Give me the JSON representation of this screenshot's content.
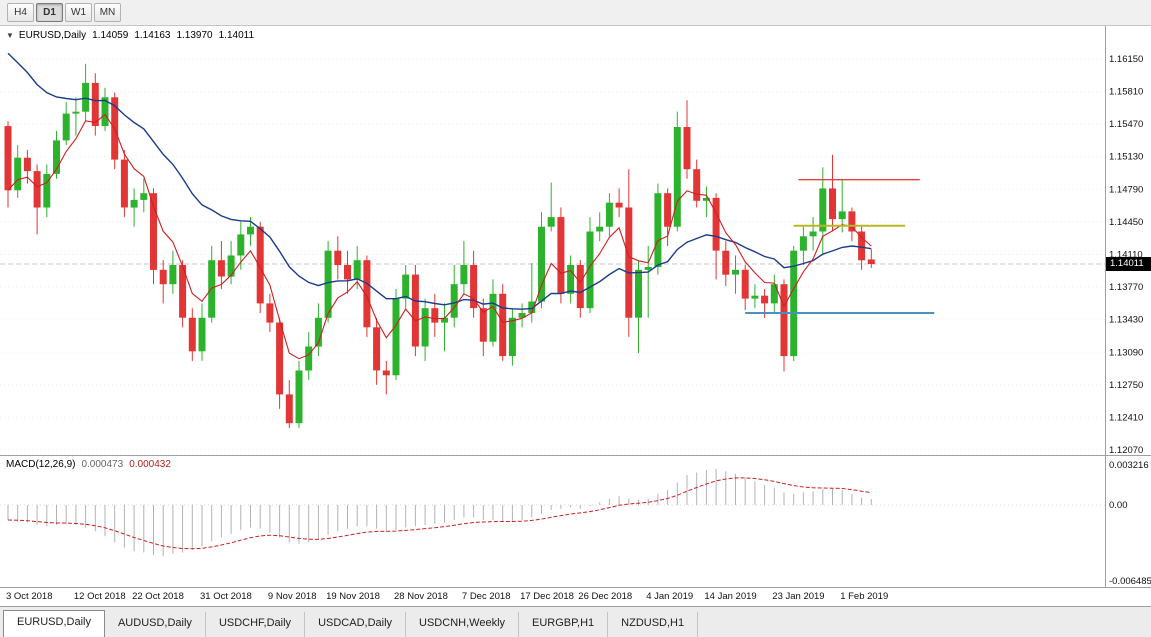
{
  "toolbar": {
    "timeframes": [
      {
        "label": "H4",
        "active": false
      },
      {
        "label": "D1",
        "active": true
      },
      {
        "label": "W1",
        "active": false
      },
      {
        "label": "MN",
        "active": false
      }
    ]
  },
  "chart": {
    "title": {
      "symbol_period": "EURUSD,Daily",
      "open": "1.14059",
      "high": "1.14163",
      "low": "1.13970",
      "close": "1.14011"
    },
    "current_price": "1.14011",
    "price_axis": [
      "1.16150",
      "1.15810",
      "1.15470",
      "1.15130",
      "1.14790",
      "1.14450",
      "1.14110",
      "1.13770",
      "1.13430",
      "1.13090",
      "1.12750",
      "1.12410",
      "1.12070"
    ]
  },
  "macd": {
    "label": "MACD(12,26,9)",
    "value": "0.000473",
    "signal_value": "0.000432",
    "axis": [
      "0.003216",
      "0.00",
      "-0.006485"
    ]
  },
  "date_axis": [
    {
      "label": "3 Oct 2018",
      "bar": 0
    },
    {
      "label": "12 Oct 2018",
      "bar": 7
    },
    {
      "label": "22 Oct 2018",
      "bar": 13
    },
    {
      "label": "31 Oct 2018",
      "bar": 20
    },
    {
      "label": "9 Nov 2018",
      "bar": 27
    },
    {
      "label": "19 Nov 2018",
      "bar": 33
    },
    {
      "label": "28 Nov 2018",
      "bar": 40
    },
    {
      "label": "7 Dec 2018",
      "bar": 47
    },
    {
      "label": "17 Dec 2018",
      "bar": 53
    },
    {
      "label": "26 Dec 2018",
      "bar": 59
    },
    {
      "label": "4 Jan 2019",
      "bar": 66
    },
    {
      "label": "14 Jan 2019",
      "bar": 72
    },
    {
      "label": "23 Jan 2019",
      "bar": 79
    },
    {
      "label": "1 Feb 2019",
      "bar": 86
    }
  ],
  "tabs": [
    {
      "label": "EURUSD,Daily",
      "active": true
    },
    {
      "label": "AUDUSD,Daily",
      "active": false
    },
    {
      "label": "USDCHF,Daily",
      "active": false
    },
    {
      "label": "USDCAD,Daily",
      "active": false
    },
    {
      "label": "USDCNH,Weekly",
      "active": false
    },
    {
      "label": "EURGBP,H1",
      "active": false
    },
    {
      "label": "NZDUSD,H1",
      "active": false
    }
  ],
  "chart_data": {
    "type": "candlestick",
    "symbol": "EURUSD",
    "timeframe": "Daily",
    "title": "EURUSD,Daily",
    "price_range": [
      1.12018,
      1.16494
    ],
    "colors": {
      "up": "#2db22d",
      "down": "#e23535",
      "hist": "#b2b2b2",
      "signal": "#cc2020",
      "ma_slow": "#1b3c8c",
      "ma_fast": "#cc2020"
    },
    "candles": [
      [
        1.1545,
        1.155,
        1.146,
        1.1478
      ],
      [
        1.1478,
        1.1525,
        1.147,
        1.1512
      ],
      [
        1.1512,
        1.152,
        1.1485,
        1.1498
      ],
      [
        1.1498,
        1.1505,
        1.1432,
        1.146
      ],
      [
        1.146,
        1.1505,
        1.145,
        1.1495
      ],
      [
        1.1495,
        1.154,
        1.149,
        1.153
      ],
      [
        1.153,
        1.157,
        1.1525,
        1.1558
      ],
      [
        1.1558,
        1.1575,
        1.1535,
        1.156
      ],
      [
        1.156,
        1.161,
        1.155,
        1.159
      ],
      [
        1.159,
        1.16,
        1.1535,
        1.1545
      ],
      [
        1.1545,
        1.1585,
        1.154,
        1.1575
      ],
      [
        1.1575,
        1.158,
        1.15,
        1.151
      ],
      [
        1.151,
        1.152,
        1.145,
        1.146
      ],
      [
        1.146,
        1.148,
        1.144,
        1.1468
      ],
      [
        1.1468,
        1.149,
        1.1455,
        1.1475
      ],
      [
        1.1475,
        1.148,
        1.138,
        1.1395
      ],
      [
        1.1395,
        1.1405,
        1.136,
        1.138
      ],
      [
        1.138,
        1.1415,
        1.137,
        1.14
      ],
      [
        1.14,
        1.1405,
        1.1335,
        1.1345
      ],
      [
        1.1345,
        1.1355,
        1.13,
        1.131
      ],
      [
        1.131,
        1.136,
        1.13,
        1.1345
      ],
      [
        1.1345,
        1.142,
        1.134,
        1.1405
      ],
      [
        1.1405,
        1.1425,
        1.1375,
        1.1388
      ],
      [
        1.1388,
        1.1425,
        1.138,
        1.141
      ],
      [
        1.141,
        1.1445,
        1.1395,
        1.1432
      ],
      [
        1.1432,
        1.145,
        1.142,
        1.144
      ],
      [
        1.144,
        1.1445,
        1.135,
        1.136
      ],
      [
        1.136,
        1.137,
        1.133,
        1.134
      ],
      [
        1.134,
        1.1345,
        1.125,
        1.1265
      ],
      [
        1.1265,
        1.128,
        1.123,
        1.1235
      ],
      [
        1.1235,
        1.13,
        1.123,
        1.129
      ],
      [
        1.129,
        1.133,
        1.128,
        1.1315
      ],
      [
        1.1315,
        1.136,
        1.1305,
        1.1345
      ],
      [
        1.1345,
        1.1425,
        1.134,
        1.1415
      ],
      [
        1.1415,
        1.143,
        1.1385,
        1.14
      ],
      [
        1.14,
        1.1415,
        1.137,
        1.1385
      ],
      [
        1.1385,
        1.142,
        1.1375,
        1.1405
      ],
      [
        1.1405,
        1.141,
        1.1325,
        1.1335
      ],
      [
        1.1335,
        1.1345,
        1.1275,
        1.129
      ],
      [
        1.129,
        1.13,
        1.1265,
        1.1285
      ],
      [
        1.1285,
        1.1375,
        1.128,
        1.1365
      ],
      [
        1.1365,
        1.14,
        1.1355,
        1.139
      ],
      [
        1.139,
        1.14,
        1.1305,
        1.1315
      ],
      [
        1.1315,
        1.1365,
        1.13,
        1.1355
      ],
      [
        1.1355,
        1.137,
        1.1325,
        1.134
      ],
      [
        1.134,
        1.136,
        1.131,
        1.1345
      ],
      [
        1.1345,
        1.14,
        1.1335,
        1.138
      ],
      [
        1.138,
        1.1425,
        1.137,
        1.14
      ],
      [
        1.14,
        1.1415,
        1.1345,
        1.1355
      ],
      [
        1.1355,
        1.1365,
        1.1305,
        1.132
      ],
      [
        1.132,
        1.1385,
        1.1315,
        1.137
      ],
      [
        1.137,
        1.138,
        1.13,
        1.1305
      ],
      [
        1.1305,
        1.1355,
        1.1295,
        1.1345
      ],
      [
        1.1345,
        1.136,
        1.1335,
        1.135
      ],
      [
        1.135,
        1.1402,
        1.134,
        1.1362
      ],
      [
        1.1362,
        1.1455,
        1.1355,
        1.144
      ],
      [
        1.144,
        1.1486,
        1.1435,
        1.145
      ],
      [
        1.145,
        1.146,
        1.136,
        1.137
      ],
      [
        1.137,
        1.141,
        1.136,
        1.14
      ],
      [
        1.14,
        1.1405,
        1.1345,
        1.1355
      ],
      [
        1.1355,
        1.145,
        1.135,
        1.1435
      ],
      [
        1.1435,
        1.1455,
        1.1425,
        1.144
      ],
      [
        1.144,
        1.1475,
        1.143,
        1.1465
      ],
      [
        1.1465,
        1.148,
        1.145,
        1.146
      ],
      [
        1.146,
        1.15,
        1.1325,
        1.1345
      ],
      [
        1.1345,
        1.1405,
        1.1308,
        1.1395
      ],
      [
        1.1395,
        1.142,
        1.1345,
        1.1398
      ],
      [
        1.1398,
        1.1485,
        1.139,
        1.1475
      ],
      [
        1.1475,
        1.148,
        1.142,
        1.144
      ],
      [
        1.144,
        1.156,
        1.1435,
        1.1544
      ],
      [
        1.1544,
        1.1572,
        1.149,
        1.15
      ],
      [
        1.15,
        1.151,
        1.146,
        1.1467
      ],
      [
        1.1467,
        1.1482,
        1.145,
        1.147
      ],
      [
        1.147,
        1.1475,
        1.1385,
        1.1415
      ],
      [
        1.1415,
        1.1425,
        1.1378,
        1.139
      ],
      [
        1.139,
        1.141,
        1.137,
        1.1395
      ],
      [
        1.1395,
        1.14,
        1.1353,
        1.1365
      ],
      [
        1.1365,
        1.138,
        1.1355,
        1.1368
      ],
      [
        1.1368,
        1.1375,
        1.1345,
        1.136
      ],
      [
        1.136,
        1.139,
        1.135,
        1.138
      ],
      [
        1.138,
        1.1385,
        1.1289,
        1.1305
      ],
      [
        1.1305,
        1.142,
        1.13,
        1.1415
      ],
      [
        1.1415,
        1.144,
        1.14,
        1.143
      ],
      [
        1.143,
        1.145,
        1.1415,
        1.1435
      ],
      [
        1.1435,
        1.1502,
        1.141,
        1.148
      ],
      [
        1.148,
        1.1515,
        1.1435,
        1.1448
      ],
      [
        1.1448,
        1.149,
        1.1434,
        1.1456
      ],
      [
        1.1456,
        1.146,
        1.1425,
        1.1435
      ],
      [
        1.1435,
        1.144,
        1.1395,
        1.1405
      ],
      [
        1.14059,
        1.14163,
        1.1397,
        1.14011
      ]
    ],
    "overlays": {
      "ma_slow": {
        "type": "ema",
        "alpha": 0.09,
        "seed": 1.1635
      },
      "ma_fast": {
        "type": "ema",
        "alpha": 0.32
      }
    },
    "hlines": [
      {
        "name": "resistance-line-red",
        "price": 1.1489,
        "bar_start": 81.5,
        "bar_end": 94,
        "color": "#e84040",
        "width": 1.3
      },
      {
        "name": "pivot-line-yellow",
        "price": 1.1441,
        "bar_start": 81,
        "bar_end": 92.5,
        "color": "#b8b821",
        "width": 2
      },
      {
        "name": "support-line-blue",
        "price": 1.135,
        "bar_start": 76,
        "bar_end": 95.5,
        "color": "#4a90c4",
        "width": 2
      }
    ],
    "macd": {
      "values": [
        -0.0012,
        -0.0013,
        -0.0014,
        -0.0016,
        -0.0017,
        -0.0016,
        -0.0015,
        -0.0016,
        -0.0018,
        -0.0021,
        -0.0025,
        -0.003,
        -0.0034,
        -0.0037,
        -0.0038,
        -0.004,
        -0.0041,
        -0.0039,
        -0.0038,
        -0.0036,
        -0.0033,
        -0.0029,
        -0.0026,
        -0.0023,
        -0.002,
        -0.0018,
        -0.0019,
        -0.0022,
        -0.0026,
        -0.003,
        -0.0031,
        -0.003,
        -0.0028,
        -0.0024,
        -0.0021,
        -0.0019,
        -0.0017,
        -0.0017,
        -0.0019,
        -0.0021,
        -0.002,
        -0.0018,
        -0.0017,
        -0.0016,
        -0.0015,
        -0.0014,
        -0.0012,
        -0.001,
        -0.001,
        -0.0012,
        -0.0012,
        -0.0013,
        -0.0013,
        -0.0012,
        -0.001,
        -0.0007,
        -0.0004,
        -0.0003,
        -0.0002,
        -0.0003,
        -0.0001,
        0.0002,
        0.0005,
        0.0007,
        0.0005,
        0.0004,
        0.0005,
        0.0009,
        0.0012,
        0.0018,
        0.0024,
        0.0026,
        0.0028,
        0.0029,
        0.0027,
        0.0025,
        0.0022,
        0.0019,
        0.0016,
        0.0014,
        0.001,
        0.0009,
        0.001,
        0.0011,
        0.0013,
        0.0013,
        0.0012,
        0.0009,
        0.0006,
        0.000473
      ],
      "signal_alpha": 0.2,
      "range": [
        -0.00664,
        0.00392
      ]
    }
  }
}
